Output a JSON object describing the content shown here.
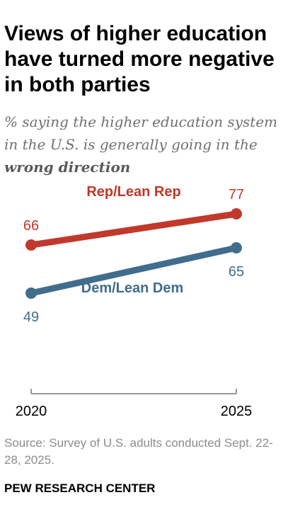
{
  "title": "Views of higher education have turned more negative in both parties",
  "subtitle": {
    "prefix": "% saying the higher education system in the U.S. is generally going in the ",
    "emphasis": "wrong direction"
  },
  "source": "Source: Survey of U.S. adults conducted Sept. 22-28, 2025.",
  "organization": "PEW RESEARCH CENTER",
  "chart_data": {
    "type": "line",
    "x": [
      "2020",
      "2025"
    ],
    "series": [
      {
        "name": "Rep/Lean Rep",
        "values": [
          66,
          77
        ],
        "color": "#c0392b"
      },
      {
        "name": "Dem/Lean Dem",
        "values": [
          49,
          65
        ],
        "color": "#416d8c"
      }
    ],
    "ylim": [
      0,
      100
    ],
    "axis_color": "#999999",
    "grid": false,
    "legend": "inline labels"
  }
}
